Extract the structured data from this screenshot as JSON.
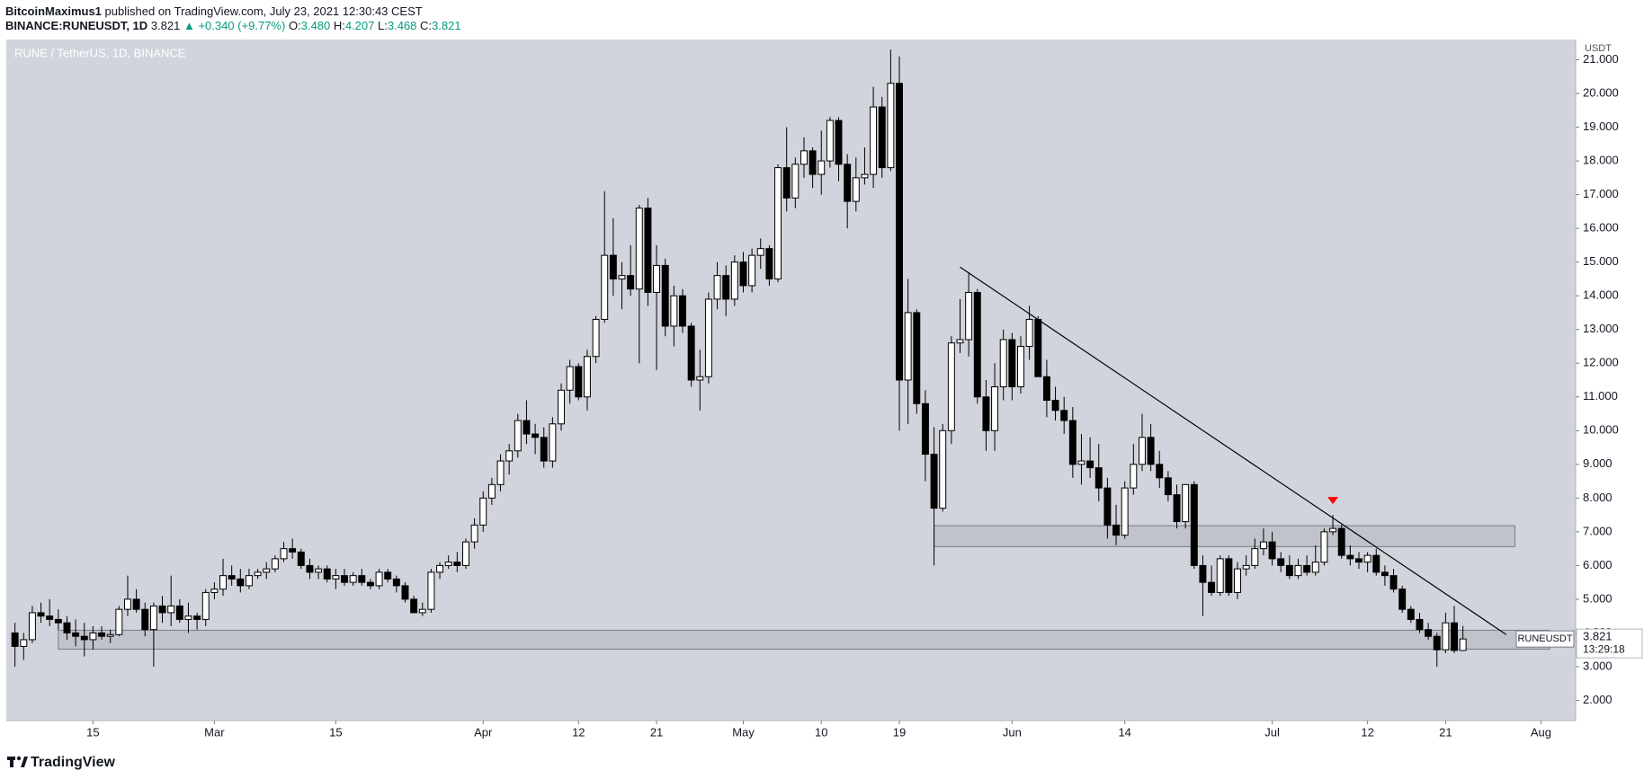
{
  "header": {
    "author": "BitcoinMaximus1",
    "published": "published on TradingView.com, July 23, 2021 12:30:43 CEST",
    "symbol": "BINANCE:RUNEUSDT, 1D",
    "last": "3.821",
    "change": "▲ +0.340 (+9.77%)",
    "o_label": "O:",
    "o": "3.480",
    "h_label": "H:",
    "h": "4.207",
    "l_label": "L:",
    "l": "3.468",
    "c_label": "C:",
    "c": "3.821"
  },
  "footer": {
    "brand": "TradingView"
  },
  "chart_data": {
    "type": "candlestick",
    "label": "RUNE / TetherUS, 1D, BINANCE",
    "y_label": "USDT",
    "up_color": "#ffffff",
    "down_color": "#000000",
    "wick_color": "#000000",
    "background": "#d1d4dc",
    "grid": false,
    "xlim": [
      "02-05",
      "08-05"
    ],
    "ylim": [
      1.4,
      21.6
    ],
    "xticks": [
      {
        "value": "02-15",
        "label": "15"
      },
      {
        "value": "03-01",
        "label": "Mar"
      },
      {
        "value": "03-15",
        "label": "15"
      },
      {
        "value": "04-01",
        "label": "Apr"
      },
      {
        "value": "04-12",
        "label": "12"
      },
      {
        "value": "04-21",
        "label": "21"
      },
      {
        "value": "05-01",
        "label": "May"
      },
      {
        "value": "05-10",
        "label": "10"
      },
      {
        "value": "05-19",
        "label": "19"
      },
      {
        "value": "06-01",
        "label": "Jun"
      },
      {
        "value": "06-14",
        "label": "14"
      },
      {
        "value": "07-01",
        "label": "Jul"
      },
      {
        "value": "07-12",
        "label": "12"
      },
      {
        "value": "07-21",
        "label": "21"
      },
      {
        "value": "08-01",
        "label": "Aug"
      }
    ],
    "yticks": [
      {
        "value": 2,
        "label": "2.000"
      },
      {
        "value": 3,
        "label": "3.000"
      },
      {
        "value": 4,
        "label": "4.000"
      },
      {
        "value": 5,
        "label": "5.000"
      },
      {
        "value": 6,
        "label": "6.000"
      },
      {
        "value": 7,
        "label": "7.000"
      },
      {
        "value": 8,
        "label": "8.000"
      },
      {
        "value": 9,
        "label": "9.000"
      },
      {
        "value": 10,
        "label": "10.000"
      },
      {
        "value": 11,
        "label": "11.000"
      },
      {
        "value": 12,
        "label": "12.000"
      },
      {
        "value": 13,
        "label": "13.000"
      },
      {
        "value": 14,
        "label": "14.000"
      },
      {
        "value": 15,
        "label": "15.000"
      },
      {
        "value": 16,
        "label": "16.000"
      },
      {
        "value": 17,
        "label": "17.000"
      },
      {
        "value": 18,
        "label": "18.000"
      },
      {
        "value": 19,
        "label": "19.000"
      },
      {
        "value": 20,
        "label": "20.000"
      },
      {
        "value": 21,
        "label": "21.000"
      }
    ],
    "x": [
      "02-06",
      "02-07",
      "02-08",
      "02-09",
      "02-10",
      "02-11",
      "02-12",
      "02-13",
      "02-14",
      "02-15",
      "02-16",
      "02-17",
      "02-18",
      "02-19",
      "02-20",
      "02-21",
      "02-22",
      "02-23",
      "02-24",
      "02-25",
      "02-26",
      "02-27",
      "02-28",
      "03-01",
      "03-02",
      "03-03",
      "03-04",
      "03-05",
      "03-06",
      "03-07",
      "03-08",
      "03-09",
      "03-10",
      "03-11",
      "03-12",
      "03-13",
      "03-14",
      "03-15",
      "03-16",
      "03-17",
      "03-18",
      "03-19",
      "03-20",
      "03-21",
      "03-22",
      "03-23",
      "03-24",
      "03-25",
      "03-26",
      "03-27",
      "03-28",
      "03-29",
      "03-30",
      "03-31",
      "04-01",
      "04-02",
      "04-03",
      "04-04",
      "04-05",
      "04-06",
      "04-07",
      "04-08",
      "04-09",
      "04-10",
      "04-11",
      "04-12",
      "04-13",
      "04-14",
      "04-15",
      "04-16",
      "04-17",
      "04-18",
      "04-19",
      "04-20",
      "04-21",
      "04-22",
      "04-23",
      "04-24",
      "04-25",
      "04-26",
      "04-27",
      "04-28",
      "04-29",
      "04-30",
      "05-01",
      "05-02",
      "05-03",
      "05-04",
      "05-05",
      "05-06",
      "05-07",
      "05-08",
      "05-09",
      "05-10",
      "05-11",
      "05-12",
      "05-13",
      "05-14",
      "05-15",
      "05-16",
      "05-17",
      "05-18",
      "05-19",
      "05-20",
      "05-21",
      "05-22",
      "05-23",
      "05-24",
      "05-25",
      "05-26",
      "05-27",
      "05-28",
      "05-29",
      "05-30",
      "05-31",
      "06-01",
      "06-02",
      "06-03",
      "06-04",
      "06-05",
      "06-06",
      "06-07",
      "06-08",
      "06-09",
      "06-10",
      "06-11",
      "06-12",
      "06-13",
      "06-14",
      "06-15",
      "06-16",
      "06-17",
      "06-18",
      "06-19",
      "06-20",
      "06-21",
      "06-22",
      "06-23",
      "06-24",
      "06-25",
      "06-26",
      "06-27",
      "06-28",
      "06-29",
      "06-30",
      "07-01",
      "07-02",
      "07-03",
      "07-04",
      "07-05",
      "07-06",
      "07-07",
      "07-08",
      "07-09",
      "07-10",
      "07-11",
      "07-12",
      "07-13",
      "07-14",
      "07-15",
      "07-16",
      "07-17",
      "07-18",
      "07-19",
      "07-20",
      "07-21",
      "07-22",
      "07-23"
    ],
    "open": [
      4.0,
      3.6,
      3.8,
      4.6,
      4.5,
      4.4,
      4.3,
      4.0,
      3.9,
      3.8,
      4.0,
      3.9,
      3.95,
      4.7,
      5.0,
      4.7,
      4.1,
      4.8,
      4.6,
      4.8,
      4.4,
      4.5,
      4.4,
      5.2,
      5.3,
      5.7,
      5.6,
      5.4,
      5.7,
      5.8,
      5.9,
      6.2,
      6.5,
      6.4,
      6.0,
      5.8,
      5.9,
      5.6,
      5.7,
      5.5,
      5.7,
      5.5,
      5.4,
      5.8,
      5.6,
      5.4,
      5.0,
      4.6,
      4.7,
      5.8,
      6.0,
      6.1,
      6.0,
      6.7,
      7.2,
      8.0,
      8.4,
      9.1,
      9.4,
      10.3,
      9.9,
      9.8,
      9.1,
      10.2,
      11.2,
      11.9,
      11.0,
      12.2,
      13.3,
      15.2,
      14.5,
      14.6,
      14.2,
      16.6,
      14.1,
      14.9,
      13.1,
      14.0,
      13.1,
      11.5,
      11.6,
      13.9,
      14.6,
      13.9,
      15.0,
      14.3,
      15.2,
      15.4,
      14.5,
      17.8,
      16.9,
      17.9,
      18.3,
      17.6,
      18.0,
      19.2,
      17.9,
      16.8,
      17.5,
      17.6,
      19.6,
      17.8,
      20.3,
      11.5,
      13.5,
      10.8,
      9.3,
      7.7,
      10.0,
      12.6,
      12.7,
      14.1,
      11.0,
      10.0,
      11.3,
      12.7,
      11.3,
      12.5,
      13.3,
      11.6,
      10.9,
      10.6,
      10.3,
      9.0,
      9.1,
      8.9,
      8.3,
      7.2,
      6.9,
      8.3,
      9.0,
      9.8,
      9.0,
      8.6,
      8.1,
      7.3,
      8.4,
      6.0,
      5.5,
      5.2,
      6.2,
      5.2,
      5.9,
      6.0,
      6.5,
      6.7,
      6.2,
      6.0,
      5.7,
      6.0,
      5.8,
      6.1,
      7.0,
      7.1,
      6.3,
      6.2,
      6.1,
      6.3,
      5.8,
      5.7,
      5.3,
      4.7,
      4.4,
      4.1,
      3.9,
      3.5,
      4.3,
      3.48
    ],
    "high": [
      4.3,
      4.0,
      4.8,
      4.9,
      5.0,
      4.7,
      4.5,
      4.4,
      4.3,
      4.2,
      4.2,
      4.1,
      4.8,
      5.7,
      5.3,
      4.9,
      4.9,
      5.1,
      5.7,
      5.0,
      4.9,
      4.6,
      5.3,
      5.5,
      6.2,
      6.0,
      5.9,
      5.9,
      5.9,
      6.1,
      6.3,
      6.7,
      6.8,
      6.5,
      6.2,
      6.0,
      6.0,
      5.9,
      5.9,
      5.8,
      5.9,
      5.6,
      5.9,
      5.9,
      5.7,
      5.5,
      5.1,
      4.9,
      5.9,
      6.1,
      6.3,
      6.4,
      6.8,
      7.4,
      8.2,
      8.6,
      9.3,
      9.6,
      10.5,
      10.9,
      10.2,
      10.1,
      10.4,
      11.4,
      12.1,
      12.0,
      12.4,
      13.4,
      17.1,
      16.3,
      15.0,
      15.5,
      16.7,
      16.9,
      15.5,
      15.1,
      14.3,
      14.2,
      13.2,
      12.4,
      14.1,
      15.0,
      14.9,
      15.2,
      15.3,
      15.4,
      15.7,
      15.5,
      17.9,
      19.0,
      18.1,
      18.7,
      18.4,
      18.9,
      19.3,
      19.3,
      18.2,
      18.1,
      18.4,
      20.2,
      19.9,
      21.3,
      21.1,
      14.5,
      13.6,
      11.2,
      10.1,
      10.2,
      12.8,
      13.9,
      14.7,
      14.2,
      11.5,
      12.0,
      13.0,
      12.9,
      12.8,
      13.7,
      13.4,
      12.1,
      11.3,
      11.0,
      10.7,
      9.9,
      9.8,
      9.6,
      8.6,
      7.8,
      8.5,
      9.6,
      10.5,
      10.2,
      9.4,
      8.8,
      8.4,
      8.4,
      8.5,
      6.3,
      6.0,
      6.3,
      6.3,
      6.1,
      6.3,
      6.8,
      7.1,
      7.0,
      6.4,
      6.3,
      6.2,
      6.3,
      6.6,
      7.1,
      7.5,
      7.2,
      6.6,
      6.4,
      6.4,
      6.5,
      6.0,
      5.9,
      5.4,
      4.8,
      4.6,
      4.3,
      4.0,
      4.6,
      4.8,
      4.207
    ],
    "low": [
      3.0,
      3.2,
      3.7,
      4.3,
      4.2,
      4.1,
      3.8,
      3.6,
      3.3,
      3.5,
      3.8,
      3.7,
      3.9,
      4.5,
      4.6,
      3.9,
      3.0,
      4.3,
      4.2,
      4.3,
      4.0,
      4.1,
      4.2,
      5.0,
      5.1,
      5.4,
      5.2,
      5.3,
      5.6,
      5.6,
      5.8,
      6.1,
      6.2,
      5.9,
      5.6,
      5.6,
      5.5,
      5.3,
      5.4,
      5.4,
      5.4,
      5.3,
      5.3,
      5.5,
      5.2,
      4.9,
      4.6,
      4.5,
      4.6,
      5.6,
      5.9,
      5.8,
      5.9,
      6.5,
      7.0,
      7.8,
      8.2,
      8.7,
      9.2,
      9.6,
      9.3,
      8.9,
      8.9,
      10.0,
      10.8,
      10.9,
      10.6,
      12.0,
      13.2,
      14.0,
      13.6,
      14.0,
      12.0,
      13.7,
      11.8,
      12.8,
      12.5,
      12.9,
      11.3,
      10.6,
      11.4,
      13.6,
      13.4,
      13.7,
      14.1,
      14.1,
      14.8,
      14.3,
      14.4,
      16.5,
      16.6,
      17.5,
      17.2,
      17.0,
      17.8,
      17.4,
      16.0,
      16.5,
      17.3,
      17.2,
      17.5,
      17.7,
      10.0,
      10.2,
      10.5,
      8.5,
      6.0,
      7.6,
      9.6,
      12.3,
      12.2,
      10.8,
      9.4,
      9.4,
      10.9,
      10.9,
      11.1,
      12.1,
      11.6,
      10.4,
      10.3,
      9.9,
      8.6,
      8.4,
      8.6,
      7.9,
      6.8,
      6.6,
      6.8,
      8.1,
      8.8,
      8.8,
      8.3,
      7.9,
      7.1,
      7.1,
      5.9,
      4.5,
      5.1,
      5.1,
      5.1,
      5.0,
      5.7,
      5.9,
      6.3,
      6.0,
      5.8,
      5.6,
      5.6,
      5.7,
      5.7,
      6.0,
      6.9,
      6.2,
      6.0,
      5.9,
      5.8,
      5.7,
      5.4,
      5.2,
      4.6,
      4.3,
      4.0,
      3.8,
      3.0,
      3.4,
      3.4,
      3.468
    ],
    "close": [
      3.6,
      3.8,
      4.6,
      4.5,
      4.4,
      4.3,
      4.0,
      3.9,
      3.8,
      4.0,
      3.9,
      3.95,
      4.7,
      5.0,
      4.7,
      4.1,
      4.8,
      4.6,
      4.8,
      4.4,
      4.5,
      4.4,
      5.2,
      5.3,
      5.7,
      5.6,
      5.4,
      5.7,
      5.8,
      5.9,
      6.2,
      6.5,
      6.4,
      6.0,
      5.8,
      5.9,
      5.6,
      5.7,
      5.5,
      5.7,
      5.5,
      5.4,
      5.8,
      5.6,
      5.4,
      5.0,
      4.6,
      4.7,
      5.8,
      6.0,
      6.1,
      6.0,
      6.7,
      7.2,
      8.0,
      8.4,
      9.1,
      9.4,
      10.3,
      9.9,
      9.8,
      9.1,
      10.2,
      11.2,
      11.9,
      11.0,
      12.2,
      13.3,
      15.2,
      14.5,
      14.6,
      14.2,
      16.6,
      14.1,
      14.9,
      13.1,
      14.0,
      13.1,
      11.5,
      11.6,
      13.9,
      14.6,
      13.9,
      15.0,
      14.3,
      15.2,
      15.4,
      14.5,
      17.8,
      16.9,
      17.9,
      18.3,
      17.6,
      18.0,
      19.2,
      17.9,
      16.8,
      17.5,
      17.6,
      19.6,
      17.8,
      20.3,
      11.5,
      13.5,
      10.8,
      9.3,
      7.7,
      10.0,
      12.6,
      12.7,
      14.1,
      11.0,
      10.0,
      11.3,
      12.7,
      11.3,
      12.5,
      13.3,
      11.6,
      10.9,
      10.6,
      10.3,
      9.0,
      9.1,
      8.9,
      8.3,
      7.2,
      6.9,
      8.3,
      9.0,
      9.8,
      9.0,
      8.6,
      8.1,
      7.3,
      8.4,
      6.0,
      5.5,
      5.2,
      6.2,
      5.2,
      5.9,
      6.0,
      6.5,
      6.7,
      6.2,
      6.0,
      5.7,
      6.0,
      5.8,
      6.1,
      7.0,
      7.1,
      6.3,
      6.2,
      6.1,
      6.3,
      5.8,
      5.7,
      5.3,
      4.7,
      4.4,
      4.1,
      3.9,
      3.5,
      4.3,
      3.48,
      3.821
    ],
    "trendline": {
      "x": [
        "05-26",
        "07-28"
      ],
      "y": [
        14.85,
        3.95
      ],
      "color": "#000000"
    },
    "zones": [
      {
        "x": [
          "05-23",
          "07-29"
        ],
        "y": [
          6.56,
          7.18
        ]
      },
      {
        "x": [
          "02-11",
          "08-02"
        ],
        "y": [
          3.52,
          4.08
        ]
      }
    ],
    "zone_color": "#b2b5be",
    "marker": {
      "x": "07-08",
      "y": 7.9,
      "color": "#ff0000"
    },
    "price_label": {
      "symbol": "RUNEUSDT",
      "countdown": "13:29:18"
    }
  }
}
